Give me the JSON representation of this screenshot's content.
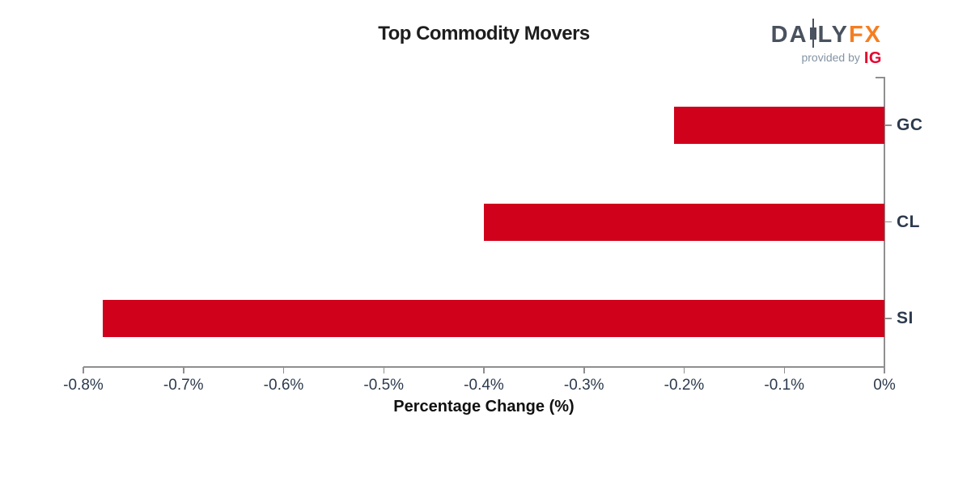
{
  "title": "Top Commodity Movers",
  "logo": {
    "brand_prefix": "DA",
    "brand_mid": "LY",
    "brand_fx": "FX",
    "provided_by": "provided by",
    "provider": "IG",
    "colors": {
      "slate": "#49525e",
      "orange": "#f57e20",
      "gray": "#8494a4",
      "red": "#e4032e"
    }
  },
  "chart_data": {
    "type": "bar",
    "orientation": "horizontal",
    "title": "Top Commodity Movers",
    "xlabel": "Percentage Change (%)",
    "ylabel": "",
    "categories": [
      "GC",
      "CL",
      "SI"
    ],
    "values": [
      -0.21,
      -0.4,
      -0.78
    ],
    "value_unit": "%",
    "xlim": [
      -0.8,
      0
    ],
    "xtick_values": [
      -0.8,
      -0.7,
      -0.6,
      -0.5,
      -0.4,
      -0.3,
      -0.2,
      -0.1,
      0
    ],
    "xticks": [
      "-0.8%",
      "-0.7%",
      "-0.6%",
      "-0.5%",
      "-0.4%",
      "-0.3%",
      "-0.2%",
      "-0.1%",
      "0%"
    ],
    "bar_color": "#d0021b",
    "axis_color": "#8f8f8f",
    "tick_label_color": "#2c3a4d",
    "grid": false,
    "legend": false,
    "category_axis_side": "right"
  }
}
